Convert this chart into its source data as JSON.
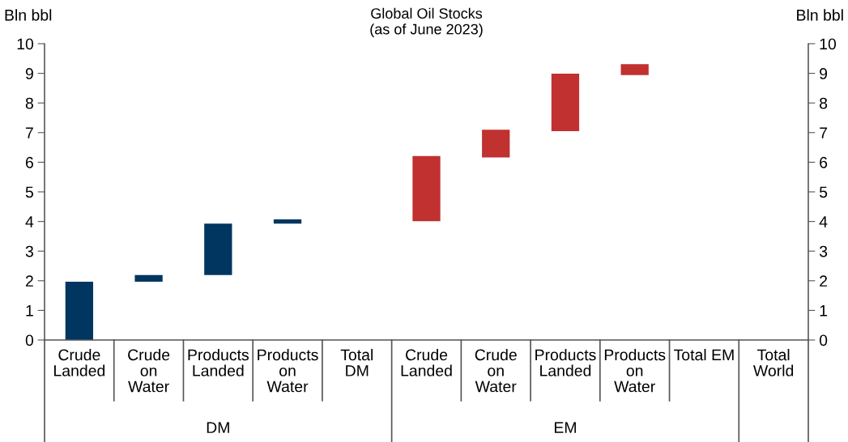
{
  "chart_data": {
    "type": "bar",
    "title": "Global Oil Stocks\n(as of June 2023)",
    "categories": [
      "Crude\nLanded",
      "Crude\non\nWater",
      "Products\nLanded",
      "Products\non\nWater",
      "Total\nDM",
      "Crude\nLanded",
      "Crude\non\nWater",
      "Products\nLanded",
      "Products\non\nWater",
      "Total EM",
      "Total\nWorld"
    ],
    "values": [
      1.97,
      0.22,
      1.74,
      0.14,
      null,
      2.2,
      0.94,
      1.94,
      0.37,
      null,
      null
    ],
    "base": [
      0,
      1.97,
      2.19,
      3.93,
      null,
      4.01,
      6.16,
      7.05,
      8.94,
      null,
      null
    ],
    "colors": [
      "#003660",
      "#003660",
      "#003660",
      "#003660",
      "#003660",
      "#c0312f",
      "#c0312f",
      "#c0312f",
      "#c0312f",
      "#c0312f",
      "#c0312f"
    ],
    "ylabel": "Bln bbl",
    "y2label": "Bln bbl",
    "ylim": [
      0,
      10
    ],
    "yticks": [
      0,
      1,
      2,
      3,
      4,
      5,
      6,
      7,
      8,
      9,
      10
    ],
    "y2lim": [
      0,
      10
    ],
    "y2ticks": [
      0,
      1,
      2,
      3,
      4,
      5,
      6,
      7,
      8,
      9,
      10
    ],
    "annotations": [
      "DM",
      "EM"
    ],
    "grid": false
  }
}
